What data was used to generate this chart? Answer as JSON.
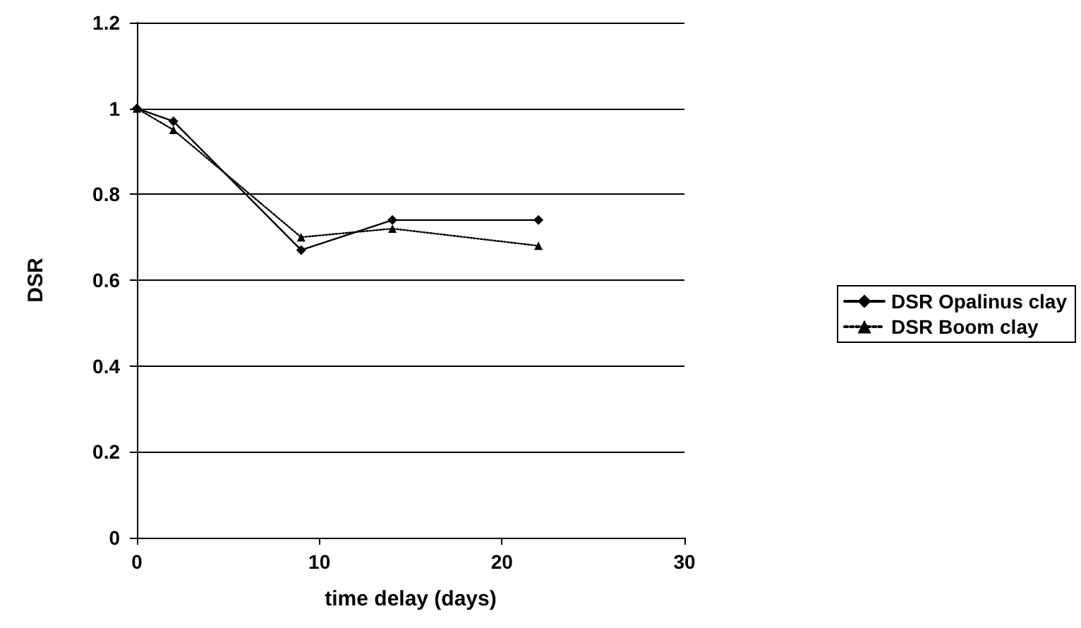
{
  "chart_data": {
    "type": "line",
    "xlabel": "time delay (days)",
    "ylabel": "DSR",
    "x": [
      0,
      2,
      9,
      14,
      22
    ],
    "series": [
      {
        "name": "DSR Opalinus clay",
        "color": "#000000",
        "values": [
          1,
          0.97,
          0.67,
          0.74,
          0.74
        ],
        "marker": "diamond",
        "line_style": "solid"
      },
      {
        "name": "DSR Boom clay",
        "color": "#000000",
        "values": [
          1,
          0.95,
          0.7,
          0.72,
          0.68
        ],
        "marker": "triangle",
        "line_style": "dotted"
      }
    ],
    "xlim": [
      0,
      30
    ],
    "xticks": [
      0,
      10,
      20,
      30
    ],
    "ylim": [
      0,
      1.2
    ],
    "yticks": [
      0,
      0.2,
      0.4,
      0.6,
      0.8,
      1,
      1.2
    ],
    "grid": "y",
    "legend": "right"
  }
}
